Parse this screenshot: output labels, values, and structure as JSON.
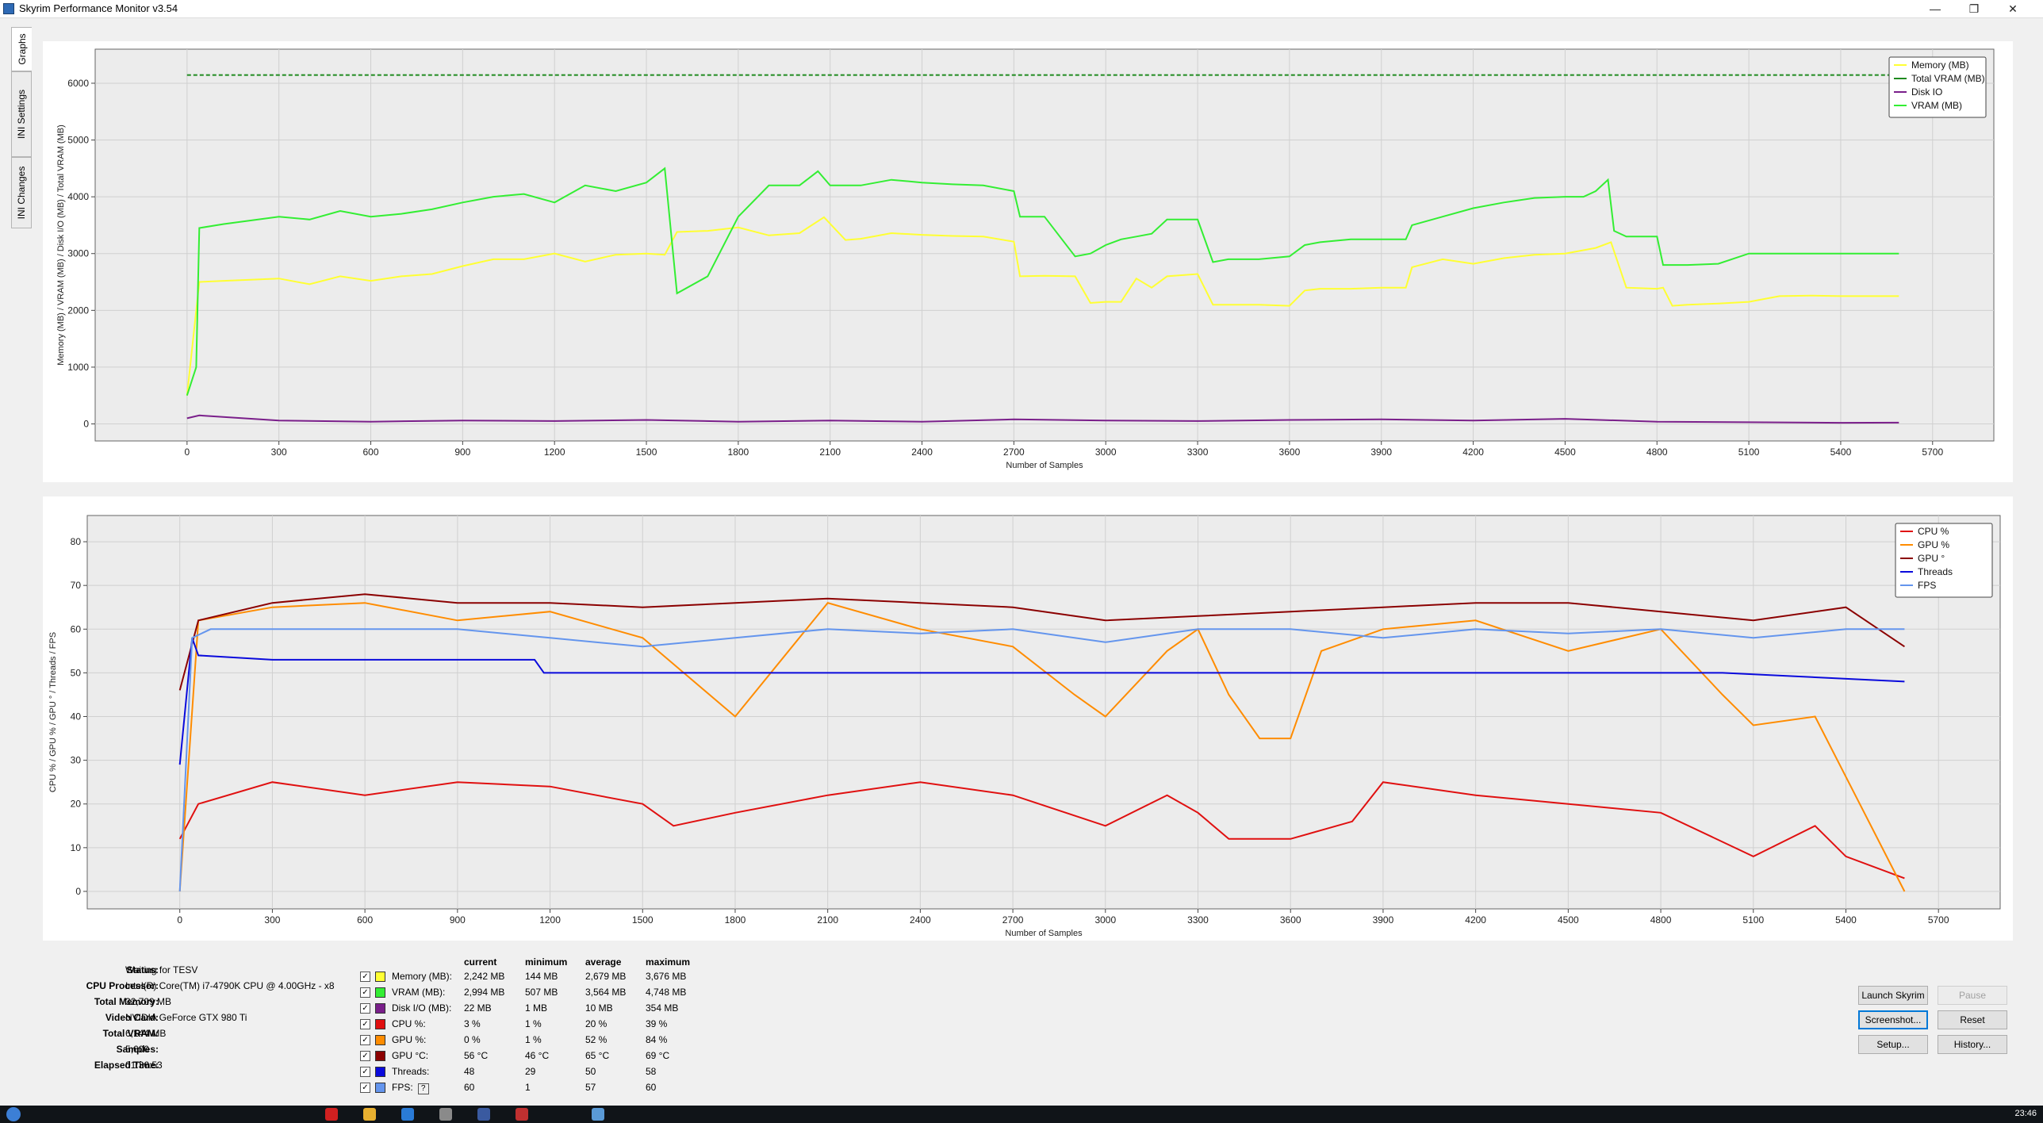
{
  "window": {
    "title": "Skyrim Performance Monitor v3.54",
    "minimize_glyph": "—",
    "maximize_glyph": "❐",
    "close_glyph": "✕"
  },
  "tabs": [
    "Graphs",
    "INI Settings",
    "INI Changes"
  ],
  "chart_data": [
    {
      "type": "line",
      "ylabel": "Memory (MB) / VRAM (MB) / Disk I/O (MB) / Total VRAM (MB)",
      "xlabel": "Number of Samples",
      "xlim": [
        -300,
        5900
      ],
      "ylim": [
        -300,
        6600
      ],
      "xticks": [
        0,
        300,
        600,
        900,
        1200,
        1500,
        1800,
        2100,
        2400,
        2700,
        3000,
        3300,
        3600,
        3900,
        4200,
        4500,
        4800,
        5100,
        5400,
        5700
      ],
      "yticks": [
        0,
        1000,
        2000,
        3000,
        4000,
        5000,
        6000
      ],
      "grid": true,
      "legend": "top-right",
      "legend_entries": [
        "Memory (MB)",
        "Total VRAM (MB)",
        "Disk IO",
        "VRAM (MB)"
      ],
      "series": [
        {
          "name": "Memory (MB)",
          "color": "#ffff33",
          "x": [
            0,
            40,
            120,
            300,
            400,
            500,
            600,
            700,
            800,
            900,
            1000,
            1100,
            1200,
            1300,
            1400,
            1500,
            1560,
            1600,
            1700,
            1800,
            1900,
            2000,
            2080,
            2150,
            2200,
            2300,
            2400,
            2500,
            2600,
            2700,
            2720,
            2800,
            2900,
            2950,
            3000,
            3050,
            3100,
            3150,
            3200,
            3300,
            3350,
            3400,
            3500,
            3600,
            3650,
            3700,
            3800,
            3900,
            3980,
            4000,
            4100,
            4200,
            4300,
            4400,
            4500,
            4600,
            4650,
            4700,
            4800,
            4820,
            4850,
            4900,
            5000,
            5100,
            5200,
            5300,
            5400,
            5500,
            5590
          ],
          "y": [
            500,
            2500,
            2520,
            2560,
            2460,
            2600,
            2520,
            2600,
            2640,
            2780,
            2900,
            2900,
            3000,
            2860,
            2980,
            3000,
            2980,
            3380,
            3400,
            3460,
            3320,
            3360,
            3640,
            3240,
            3260,
            3360,
            3330,
            3310,
            3300,
            3210,
            2600,
            2610,
            2600,
            2130,
            2150,
            2150,
            2560,
            2400,
            2600,
            2640,
            2100,
            2100,
            2100,
            2080,
            2350,
            2380,
            2380,
            2400,
            2400,
            2760,
            2900,
            2820,
            2920,
            2980,
            3000,
            3100,
            3200,
            2400,
            2380,
            2400,
            2080,
            2100,
            2120,
            2150,
            2250,
            2260,
            2250,
            2250,
            2250
          ]
        },
        {
          "name": "Total VRAM (MB)",
          "color": "#1f8a1f",
          "x": [
            0,
            5590
          ],
          "y": [
            6144,
            6144
          ]
        },
        {
          "name": "VRAM (MB)",
          "color": "#33ee33",
          "x": [
            0,
            30,
            40,
            120,
            300,
            400,
            500,
            600,
            700,
            800,
            900,
            1000,
            1100,
            1200,
            1300,
            1400,
            1500,
            1560,
            1600,
            1700,
            1800,
            1900,
            2000,
            2060,
            2100,
            2200,
            2300,
            2400,
            2500,
            2600,
            2700,
            2720,
            2800,
            2900,
            2950,
            3000,
            3050,
            3100,
            3150,
            3200,
            3300,
            3350,
            3400,
            3500,
            3600,
            3650,
            3700,
            3800,
            3900,
            3980,
            4000,
            4100,
            4200,
            4300,
            4400,
            4500,
            4560,
            4600,
            4640,
            4660,
            4700,
            4800,
            4820,
            4850,
            4900,
            5000,
            5100,
            5200,
            5300,
            5400,
            5500,
            5590
          ],
          "y": [
            500,
            1000,
            3450,
            3520,
            3650,
            3600,
            3750,
            3650,
            3700,
            3780,
            3900,
            4000,
            4050,
            3900,
            4200,
            4100,
            4250,
            4500,
            2300,
            2600,
            3650,
            4200,
            4200,
            4450,
            4200,
            4200,
            4300,
            4250,
            4220,
            4200,
            4100,
            3650,
            3650,
            2950,
            3000,
            3150,
            3250,
            3300,
            3350,
            3600,
            3600,
            2850,
            2900,
            2900,
            2950,
            3150,
            3200,
            3250,
            3250,
            3250,
            3500,
            3650,
            3800,
            3900,
            3980,
            4000,
            4000,
            4100,
            4300,
            3400,
            3300,
            3300,
            2800,
            2800,
            2800,
            2820,
            3000,
            3000,
            3000,
            3000,
            3000,
            3000
          ]
        },
        {
          "name": "Disk IO",
          "color": "#7a1f8a",
          "x": [
            0,
            40,
            300,
            600,
            900,
            1200,
            1500,
            1800,
            2100,
            2400,
            2700,
            3000,
            3300,
            3600,
            3900,
            4200,
            4500,
            4800,
            5100,
            5400,
            5590
          ],
          "y": [
            100,
            150,
            60,
            40,
            60,
            50,
            70,
            40,
            60,
            40,
            80,
            60,
            50,
            70,
            80,
            60,
            90,
            40,
            30,
            20,
            22
          ]
        }
      ]
    },
    {
      "type": "line",
      "ylabel": "CPU % / GPU % / GPU ° / Threads / FPS",
      "xlabel": "Number of Samples",
      "xlim": [
        -300,
        5900
      ],
      "ylim": [
        -4,
        86
      ],
      "xticks": [
        0,
        300,
        600,
        900,
        1200,
        1500,
        1800,
        2100,
        2400,
        2700,
        3000,
        3300,
        3600,
        3900,
        4200,
        4500,
        4800,
        5100,
        5400,
        5700
      ],
      "yticks": [
        0,
        10,
        20,
        30,
        40,
        50,
        60,
        70,
        80
      ],
      "grid": true,
      "legend": "top-right",
      "legend_entries": [
        "CPU %",
        "GPU %",
        "GPU °",
        "Threads",
        "FPS"
      ],
      "series": [
        {
          "name": "CPU %",
          "color": "#e01010",
          "x": [
            0,
            60,
            300,
            600,
            900,
            1200,
            1500,
            1600,
            1800,
            2100,
            2400,
            2700,
            3000,
            3200,
            3300,
            3400,
            3500,
            3600,
            3800,
            3900,
            4200,
            4500,
            4800,
            5100,
            5300,
            5400,
            5590
          ],
          "y": [
            12,
            20,
            25,
            22,
            25,
            24,
            20,
            15,
            18,
            22,
            25,
            22,
            15,
            22,
            18,
            12,
            12,
            12,
            16,
            25,
            22,
            20,
            18,
            8,
            15,
            8,
            3
          ]
        },
        {
          "name": "GPU %",
          "color": "#ff8c00",
          "x": [
            0,
            60,
            300,
            600,
            900,
            1200,
            1500,
            1800,
            2100,
            2400,
            2700,
            2900,
            3000,
            3200,
            3300,
            3400,
            3500,
            3600,
            3700,
            3900,
            4200,
            4500,
            4800,
            5000,
            5100,
            5300,
            5590
          ],
          "y": [
            0,
            62,
            65,
            66,
            62,
            64,
            58,
            40,
            66,
            60,
            56,
            45,
            40,
            55,
            60,
            45,
            35,
            35,
            55,
            60,
            62,
            55,
            60,
            45,
            38,
            40,
            0
          ]
        },
        {
          "name": "GPU °",
          "color": "#8b0000",
          "x": [
            0,
            60,
            300,
            600,
            900,
            1200,
            1500,
            1800,
            2100,
            2400,
            2700,
            3000,
            3300,
            3600,
            3900,
            4200,
            4500,
            4800,
            5100,
            5400,
            5590
          ],
          "y": [
            46,
            62,
            66,
            68,
            66,
            66,
            65,
            66,
            67,
            66,
            65,
            62,
            63,
            64,
            65,
            66,
            66,
            64,
            62,
            65,
            56
          ]
        },
        {
          "name": "Threads",
          "color": "#0a0adc",
          "x": [
            0,
            40,
            60,
            300,
            1150,
            1180,
            2000,
            3000,
            4000,
            5000,
            5590
          ],
          "y": [
            29,
            58,
            54,
            53,
            53,
            50,
            50,
            50,
            50,
            50,
            48
          ]
        },
        {
          "name": "FPS",
          "color": "#6495ed",
          "x": [
            0,
            40,
            100,
            300,
            600,
            900,
            1200,
            1500,
            1800,
            2100,
            2400,
            2700,
            3000,
            3300,
            3600,
            3900,
            4200,
            4500,
            4800,
            5100,
            5400,
            5590
          ],
          "y": [
            0,
            58,
            60,
            60,
            60,
            60,
            58,
            56,
            58,
            60,
            59,
            60,
            57,
            60,
            60,
            58,
            60,
            59,
            60,
            58,
            60,
            60
          ]
        }
      ]
    }
  ],
  "info": {
    "labels": [
      "Status:",
      "CPU Processor:",
      "Total Memory:",
      "Video Card:",
      "Total VRAM:",
      "Samples:",
      "Elapsed Time:"
    ],
    "values": [
      "Waiting for TESV",
      "Intel(R) Core(TM) i7-4790K CPU @ 4.00GHz - x8",
      "32,709 MB",
      "NVIDIA GeForce GTX 980 Ti",
      "6,144 MB",
      "5,600",
      "01:36:53"
    ]
  },
  "stats": {
    "headers": [
      "current",
      "minimum",
      "average",
      "maximum"
    ],
    "rows": [
      {
        "label": "Memory (MB):",
        "color": "#ffff33",
        "checked": "✓",
        "current": "2,242 MB",
        "minimum": "144 MB",
        "average": "2,679 MB",
        "maximum": "3,676 MB"
      },
      {
        "label": "VRAM (MB):",
        "color": "#33ee33",
        "checked": "✓",
        "current": "2,994 MB",
        "minimum": "507 MB",
        "average": "3,564 MB",
        "maximum": "4,748 MB"
      },
      {
        "label": "Disk I/O (MB):",
        "color": "#7a1f8a",
        "checked": "✓",
        "current": "22 MB",
        "minimum": "1 MB",
        "average": "10 MB",
        "maximum": "354 MB"
      },
      {
        "label": "CPU %:",
        "color": "#e01010",
        "checked": "✓",
        "current": "3 %",
        "minimum": "1 %",
        "average": "20 %",
        "maximum": "39 %"
      },
      {
        "label": "GPU %:",
        "color": "#ff8c00",
        "checked": "✓",
        "current": "0 %",
        "minimum": "1 %",
        "average": "52 %",
        "maximum": "84 %"
      },
      {
        "label": "GPU °C:",
        "color": "#8b0000",
        "checked": "✓",
        "current": "56 °C",
        "minimum": "46 °C",
        "average": "65 °C",
        "maximum": "69 °C"
      },
      {
        "label": "Threads:",
        "color": "#0a0adc",
        "checked": "✓",
        "current": "48",
        "minimum": "29",
        "average": "50",
        "maximum": "58"
      },
      {
        "label": "FPS:",
        "color": "#6495ed",
        "checked": "✓",
        "current": "60",
        "minimum": "1",
        "average": "57",
        "maximum": "60"
      }
    ],
    "fps_help": "?"
  },
  "buttons": {
    "launch": "Launch Skyrim",
    "pause": "Pause",
    "screenshot": "Screenshot...",
    "reset": "Reset",
    "setup": "Setup...",
    "history": "History..."
  },
  "taskbar": {
    "clock": "23:46",
    "app_colors": [
      "#d02020",
      "#e8b030",
      "#2a7bd6",
      "#8a8a8a",
      "#3a5aa0",
      "#c03030",
      "#5a9ad6"
    ]
  }
}
